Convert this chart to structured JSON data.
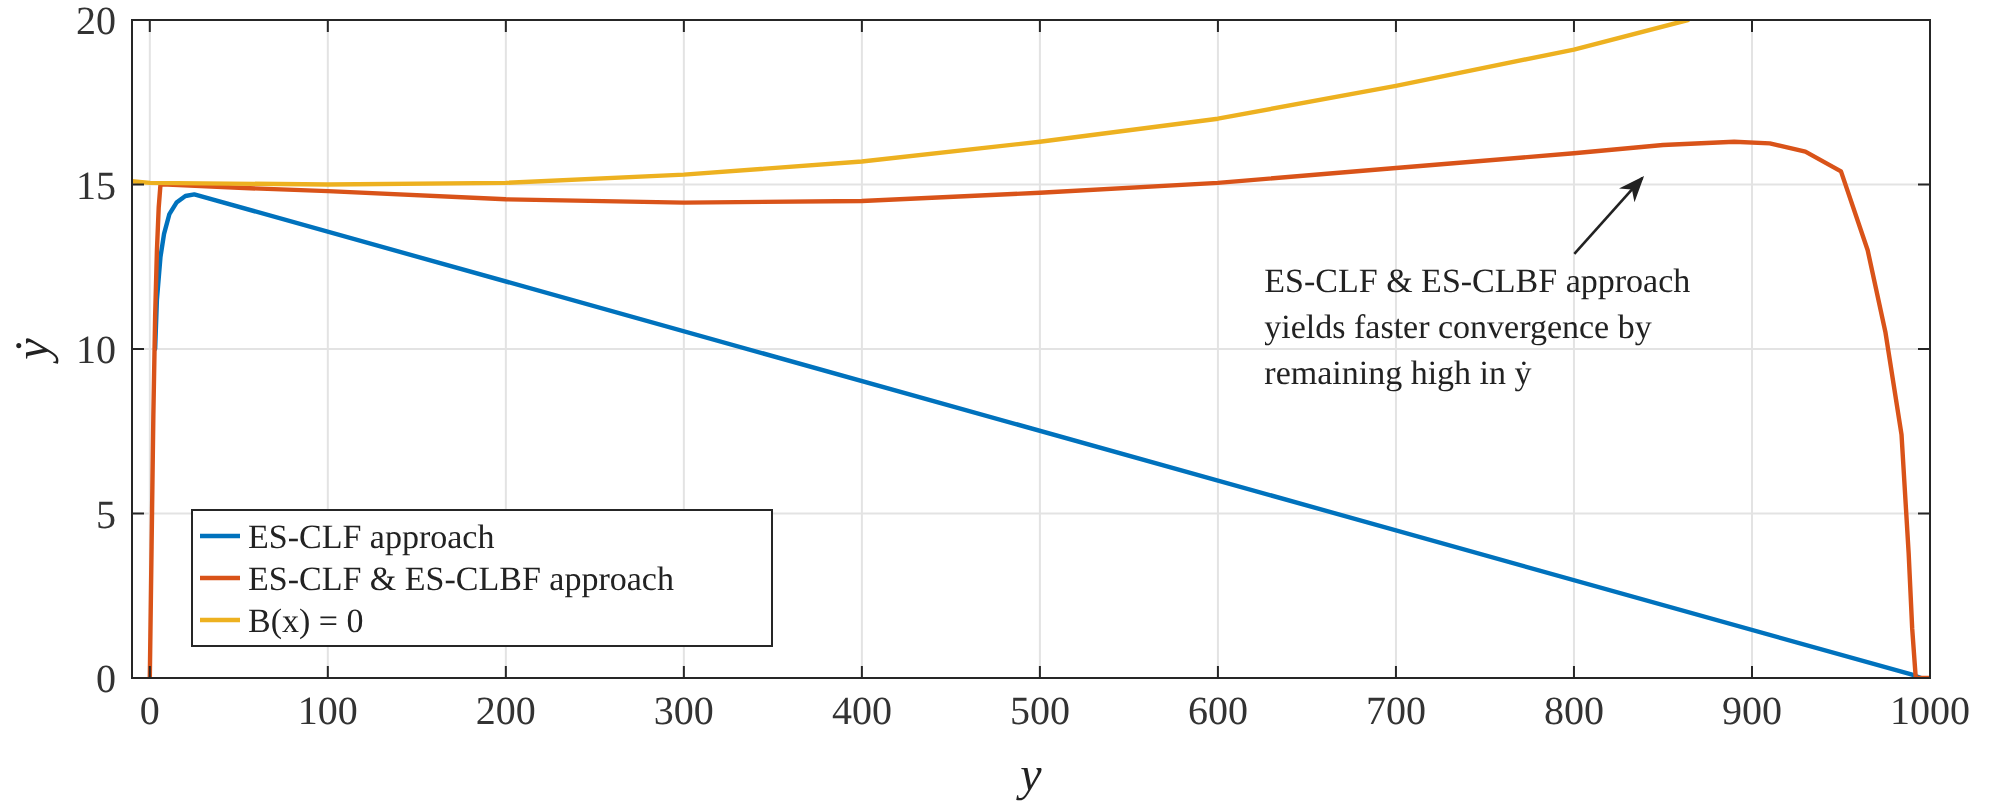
{
  "chart_data": {
    "type": "line",
    "xlabel": "y",
    "ylabel": "ẏ",
    "xlim": [
      -10,
      1000
    ],
    "ylim": [
      0,
      20
    ],
    "xticks": [
      0,
      100,
      200,
      300,
      400,
      500,
      600,
      700,
      800,
      900,
      1000
    ],
    "yticks": [
      0,
      5,
      10,
      15,
      20
    ],
    "grid": true,
    "legend": "bottom left",
    "line_style": "solid",
    "marker": "none",
    "series": [
      {
        "name": "ES-CLF approach",
        "color": "#0072bd",
        "x": [
          3,
          4,
          6,
          8,
          11,
          15,
          20,
          25,
          990,
          995
        ],
        "values": [
          10,
          11.5,
          12.8,
          13.5,
          14.1,
          14.45,
          14.65,
          14.7,
          0.1,
          0
        ]
      },
      {
        "name": "ES-CLF & ES-CLBF approach",
        "color": "#d95319",
        "x": [
          0,
          1,
          2,
          3,
          4,
          5,
          6,
          10,
          50,
          100,
          200,
          300,
          400,
          500,
          600,
          700,
          800,
          850,
          890,
          910,
          930,
          950,
          965,
          975,
          984,
          988,
          990,
          992,
          1000
        ],
        "values": [
          0,
          4,
          8,
          11,
          13,
          14.3,
          15,
          15,
          14.9,
          14.8,
          14.55,
          14.45,
          14.5,
          14.75,
          15.05,
          15.5,
          15.95,
          16.2,
          16.3,
          16.25,
          16,
          15.4,
          13,
          10.5,
          7.4,
          3.8,
          1.5,
          0,
          0
        ]
      },
      {
        "name": "B(x) = 0",
        "color": "#edb120",
        "x": [
          -10,
          0,
          100,
          200,
          300,
          400,
          500,
          600,
          700,
          800,
          864
        ],
        "values": [
          15.1,
          15.05,
          15,
          15.05,
          15.3,
          15.7,
          16.3,
          17,
          18,
          19.1,
          20
        ]
      }
    ],
    "annotations": [
      "ES-CLF & ES-CLBF approach\nyields faster convergence by\nremaining high in ẏ"
    ]
  }
}
